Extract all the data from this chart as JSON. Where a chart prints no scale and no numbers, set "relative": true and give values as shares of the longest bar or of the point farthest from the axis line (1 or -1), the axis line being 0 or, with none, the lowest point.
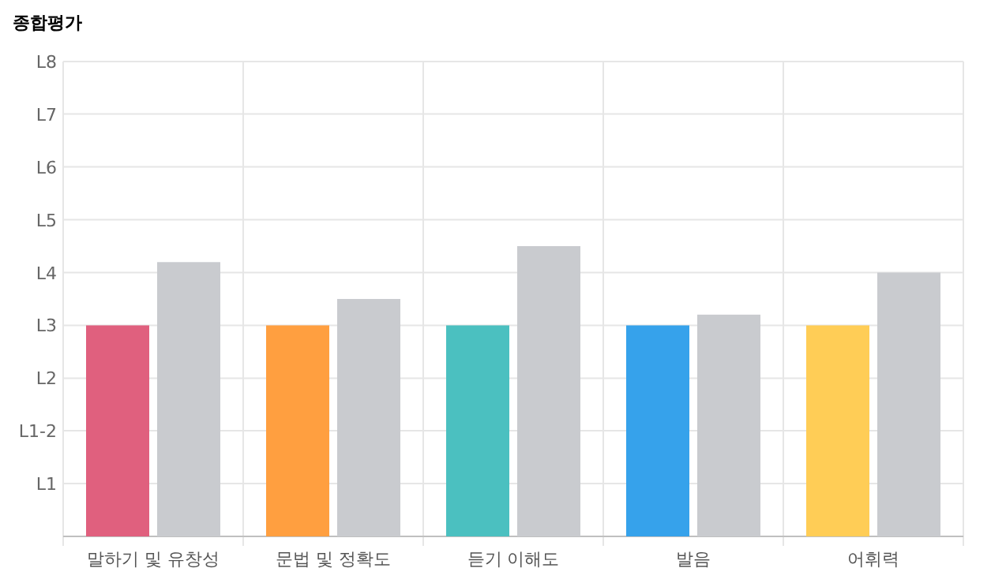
{
  "chart_data": {
    "type": "bar",
    "title": "종합평가",
    "categories": [
      "말하기 및 유창성",
      "문법 및 정확도",
      "듣기 이해도",
      "발음",
      "어휘력"
    ],
    "relative": true,
    "series": [
      {
        "colors": [
          "#e0607e",
          "#ff9f40",
          "#4bc0c0",
          "#36a2eb",
          "#ffcd56"
        ],
        "values": [
          0.727,
          0.727,
          0.727,
          0.727,
          0.727
        ]
      },
      {
        "color": "#c9cbcf",
        "values": [
          0.945,
          0.818,
          1,
          0.764,
          0.909
        ]
      }
    ],
    "ref_lines": [
      {
        "axis": "y",
        "value": 0.182,
        "label": "L1",
        "color": "#e6e6e6"
      },
      {
        "axis": "y",
        "value": 0.364,
        "label": "L1-2",
        "color": "#e6e6e6"
      },
      {
        "axis": "y",
        "value": 0.545,
        "label": "L2",
        "color": "#e6e6e6"
      },
      {
        "axis": "y",
        "value": 0.727,
        "label": "L3",
        "color": "#e6e6e6"
      },
      {
        "axis": "y",
        "value": 0.909,
        "label": "L4",
        "color": "#e6e6e6"
      },
      {
        "axis": "y",
        "value": 1.091,
        "label": "L5",
        "color": "#e6e6e6"
      },
      {
        "axis": "y",
        "value": 1.273,
        "label": "L6",
        "color": "#e6e6e6"
      },
      {
        "axis": "y",
        "value": 1.455,
        "label": "L7",
        "color": "#e6e6e6"
      },
      {
        "axis": "y",
        "value": 1.636,
        "label": "L8",
        "color": "#e6e6e6"
      }
    ],
    "grid": "x"
  }
}
